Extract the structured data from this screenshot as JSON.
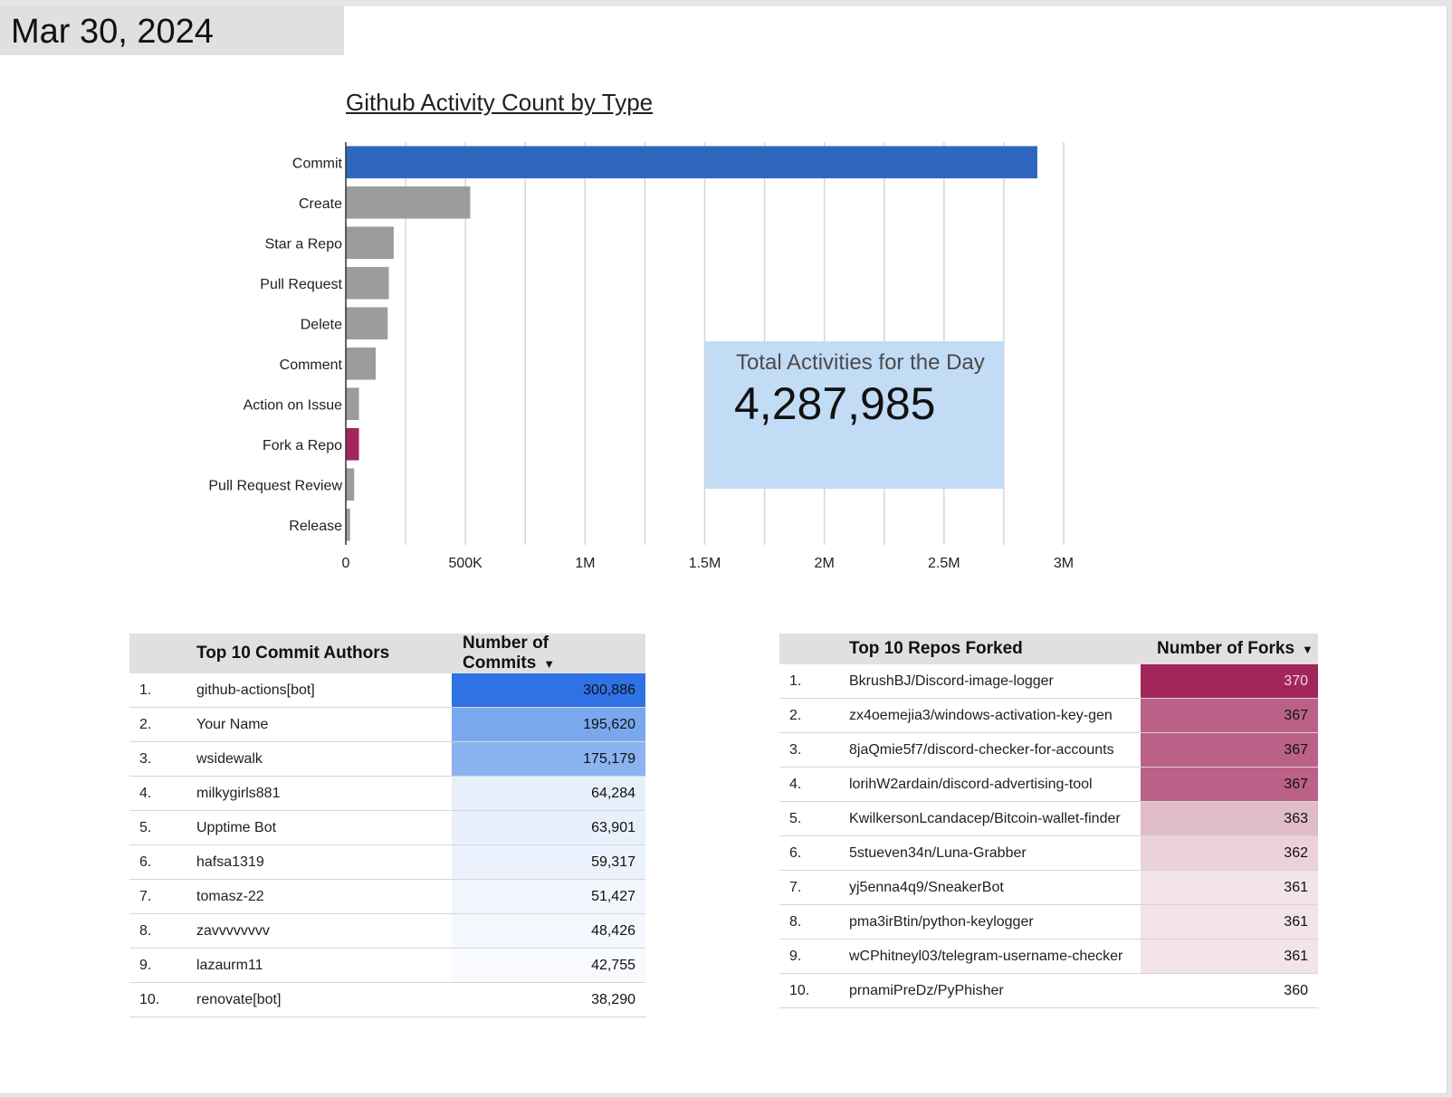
{
  "date_label": "Mar 30, 2024",
  "chart_data": {
    "type": "bar",
    "orientation": "horizontal",
    "title": "Github Activity Count by Type",
    "categories": [
      "Commit",
      "Create",
      "Star a Repo",
      "Pull Request",
      "Delete",
      "Comment",
      "Action on Issue",
      "Fork a Repo",
      "Pull Request Review",
      "Release"
    ],
    "values": [
      2890000,
      520000,
      200000,
      180000,
      175000,
      125000,
      55000,
      55000,
      35000,
      18000
    ],
    "highlight": {
      "Commit": "#3067be",
      "Fork a Repo": "#a3265a"
    },
    "default_color": "#9c9c9c",
    "xlim": [
      0,
      3000000
    ],
    "xticks": [
      0,
      500000,
      1000000,
      1500000,
      2000000,
      2500000,
      3000000
    ],
    "xtick_labels": [
      "0",
      "500K",
      "1M",
      "1.5M",
      "2M",
      "2.5M",
      "3M"
    ],
    "grid": true
  },
  "kpi": {
    "label": "Total Activities for the Day",
    "value": "4,287,985"
  },
  "commit_table": {
    "header_rank": "",
    "header_name": "Top 10 Commit Authors",
    "header_value": "Number of Commits",
    "sort_icon": "sort-descending-icon",
    "rows": [
      {
        "rank": "1.",
        "name": "github-actions[bot]",
        "value": "300,886",
        "bg": "#2f72e6",
        "fg": "#111111"
      },
      {
        "rank": "2.",
        "name": "Your Name",
        "value": "195,620",
        "bg": "#7aa8ee",
        "fg": "#111111"
      },
      {
        "rank": "3.",
        "name": "wsidewalk",
        "value": "175,179",
        "bg": "#8ab3f0",
        "fg": "#111111"
      },
      {
        "rank": "4.",
        "name": "milkygirls881",
        "value": "64,284",
        "bg": "#e7effc",
        "fg": "#111111"
      },
      {
        "rank": "5.",
        "name": "Upptime Bot",
        "value": "63,901",
        "bg": "#e8f0fc",
        "fg": "#111111"
      },
      {
        "rank": "6.",
        "name": "hafsa1319",
        "value": "59,317",
        "bg": "#ecf2fd",
        "fg": "#111111"
      },
      {
        "rank": "7.",
        "name": "tomasz-22",
        "value": "51,427",
        "bg": "#f1f6fd",
        "fg": "#111111"
      },
      {
        "rank": "8.",
        "name": "zavvvvvvvv",
        "value": "48,426",
        "bg": "#f3f7fe",
        "fg": "#111111"
      },
      {
        "rank": "9.",
        "name": "lazaurm11",
        "value": "42,755",
        "bg": "#f8fafe",
        "fg": "#111111"
      },
      {
        "rank": "10.",
        "name": "renovate[bot]",
        "value": "38,290",
        "bg": "#ffffff",
        "fg": "#111111"
      }
    ]
  },
  "fork_table": {
    "header_rank": "",
    "header_name": "Top 10 Repos Forked",
    "header_value": "Number of Forks",
    "sort_icon": "sort-descending-icon",
    "rows": [
      {
        "rank": "1.",
        "name": "BkrushBJ/Discord-image-logger",
        "value": "370",
        "bg": "#a3265a",
        "fg": "#f1d6e2"
      },
      {
        "rank": "2.",
        "name": "zx4oemejia3/windows-activation-key-gen",
        "value": "367",
        "bg": "#bb6187",
        "fg": "#111111"
      },
      {
        "rank": "3.",
        "name": "8jaQmie5f7/discord-checker-for-accounts",
        "value": "367",
        "bg": "#bb6187",
        "fg": "#111111"
      },
      {
        "rank": "4.",
        "name": "lorihW2ardain/discord-advertising-tool",
        "value": "367",
        "bg": "#bb6187",
        "fg": "#111111"
      },
      {
        "rank": "5.",
        "name": "KwilkersonLcandacep/Bitcoin-wallet-finder",
        "value": "363",
        "bg": "#e0bccb",
        "fg": "#111111"
      },
      {
        "rank": "6.",
        "name": "5stueven34n/Luna-Grabber",
        "value": "362",
        "bg": "#ead1dc",
        "fg": "#111111"
      },
      {
        "rank": "7.",
        "name": "yj5enna4q9/SneakerBot",
        "value": "361",
        "bg": "#f3e3ea",
        "fg": "#111111"
      },
      {
        "rank": "8.",
        "name": "pma3irBtin/python-keylogger",
        "value": "361",
        "bg": "#f3e3ea",
        "fg": "#111111"
      },
      {
        "rank": "9.",
        "name": "wCPhitneyl03/telegram-username-checker",
        "value": "361",
        "bg": "#f3e3ea",
        "fg": "#111111"
      },
      {
        "rank": "10.",
        "name": "prnamiPreDz/PyPhisher",
        "value": "360",
        "bg": "#ffffff",
        "fg": "#111111"
      }
    ]
  }
}
